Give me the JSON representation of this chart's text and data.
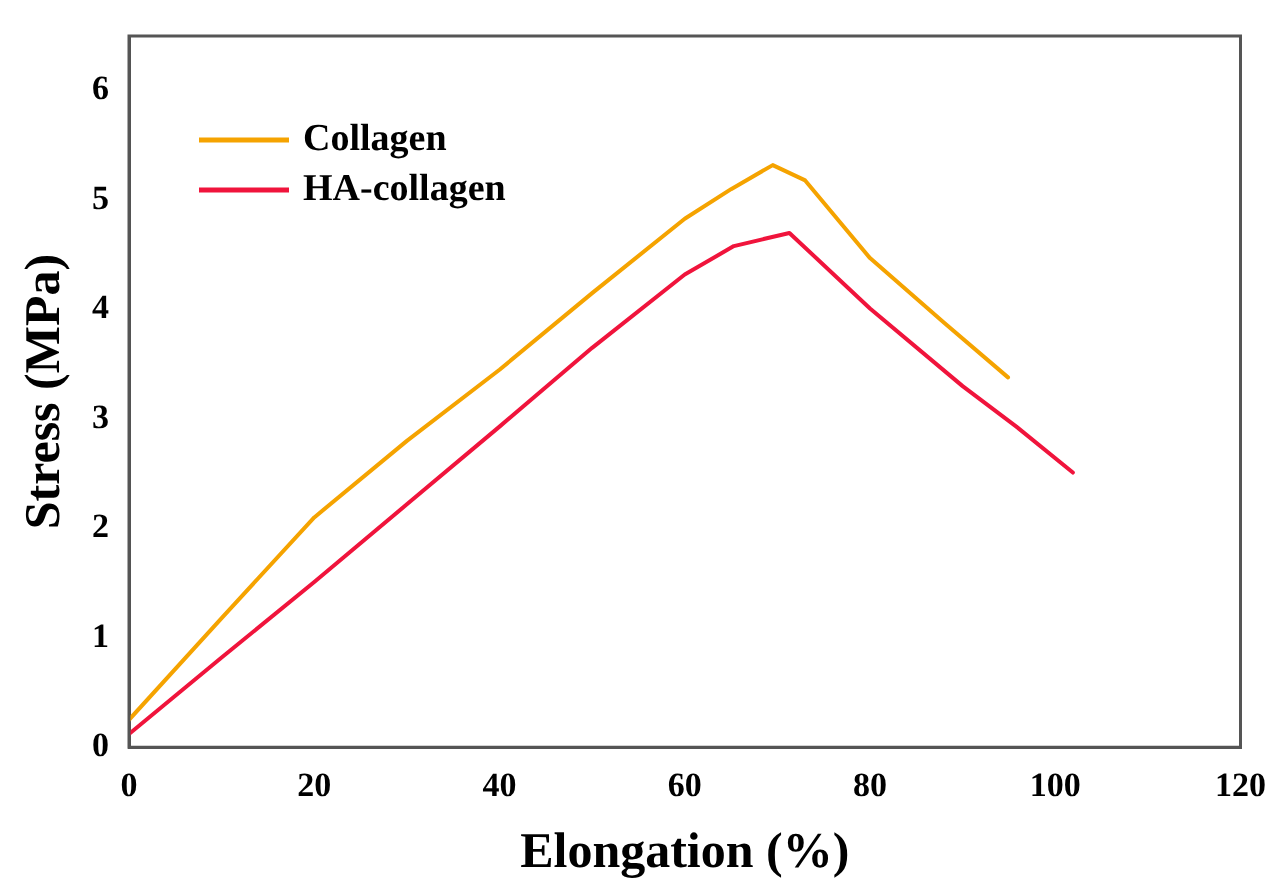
{
  "chart_data": {
    "type": "line",
    "xlabel": "Elongation (%)",
    "ylabel": "Stress (MPa)",
    "xlim": [
      0,
      120
    ],
    "xticks": [
      0,
      20,
      40,
      60,
      80,
      100,
      120
    ],
    "ylim": [
      0,
      6.5
    ],
    "yticks": [
      0,
      1,
      2,
      3,
      4,
      5,
      6
    ],
    "grid": false,
    "legend": "top left",
    "marker": "none",
    "line_style": "solid",
    "series": [
      {
        "name": "Collagen",
        "color": "#f5a300",
        "x": [
          0,
          10,
          20,
          30,
          40,
          50,
          60,
          65,
          69.5,
          73,
          80,
          88,
          94.9
        ],
        "values": [
          0.25,
          1.18,
          2.1,
          2.8,
          3.45,
          4.15,
          4.83,
          5.1,
          5.32,
          5.18,
          4.47,
          3.88,
          3.38
        ]
      },
      {
        "name": "HA-collagen",
        "color": "#f0143c",
        "x": [
          0,
          10,
          20,
          30,
          40,
          50,
          60,
          65.3,
          71.3,
          80,
          90,
          95.8,
          101.9
        ],
        "values": [
          0.12,
          0.82,
          1.51,
          2.22,
          2.93,
          3.65,
          4.32,
          4.58,
          4.7,
          4.01,
          3.3,
          2.93,
          2.51
        ]
      }
    ]
  }
}
